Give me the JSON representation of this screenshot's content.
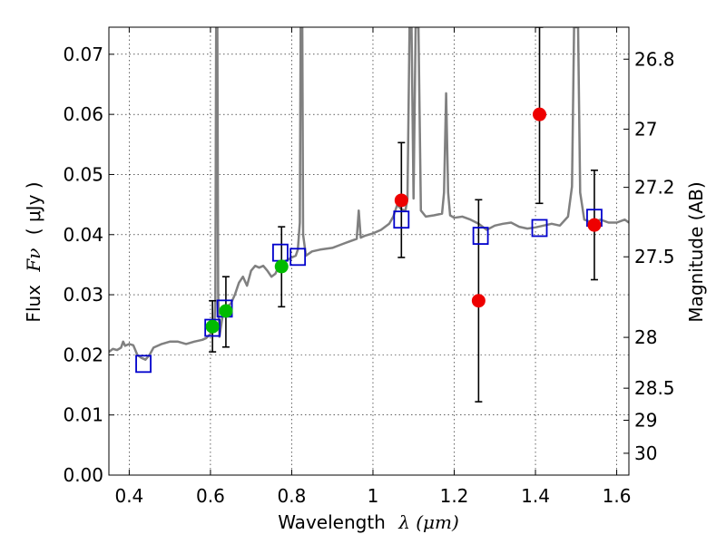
{
  "chart_data": {
    "type": "scatter",
    "xlabel": "Wavelength",
    "xlabel_symbol": "λ (μm)",
    "ylabel": "Flux",
    "ylabel_symbol": "Fν",
    "ylabel_unit": "( μJy )",
    "y2label": "Magnitude (AB)",
    "xlim": [
      0.35,
      1.63
    ],
    "ylim": [
      0.0,
      0.0745
    ],
    "grid": true,
    "x_ticks": [
      0.4,
      0.6,
      0.8,
      1.0,
      1.2,
      1.4,
      1.6
    ],
    "x_tick_labels": [
      "0.4",
      "0.6",
      "0.8",
      "1",
      "1.2",
      "1.4",
      "1.6"
    ],
    "y_ticks": [
      0.0,
      0.01,
      0.02,
      0.03,
      0.04,
      0.05,
      0.06,
      0.07
    ],
    "y_tick_labels": [
      "0.00",
      "0.01",
      "0.02",
      "0.03",
      "0.04",
      "0.05",
      "0.06",
      "0.07"
    ],
    "y2_ticks": [
      {
        "label": "26.8",
        "mag": 26.8
      },
      {
        "label": "27",
        "mag": 27.0
      },
      {
        "label": "27.2",
        "mag": 27.2
      },
      {
        "label": "27.5",
        "mag": 27.5
      },
      {
        "label": "28",
        "mag": 28.0
      },
      {
        "label": "28.5",
        "mag": 28.5
      },
      {
        "label": "29",
        "mag": 29.0
      },
      {
        "label": "30",
        "mag": 30.0
      }
    ],
    "colors": {
      "model": "#808080",
      "observed_green": "#00bb00",
      "observed_red": "#ee0000",
      "synthetic_box": "#0000cc",
      "errorbar": "#000000"
    },
    "series": [
      {
        "kind": "model_spectrum",
        "points": [
          [
            0.35,
            0.0205
          ],
          [
            0.36,
            0.021
          ],
          [
            0.37,
            0.0208
          ],
          [
            0.38,
            0.0212
          ],
          [
            0.385,
            0.0222
          ],
          [
            0.39,
            0.0215
          ],
          [
            0.4,
            0.0218
          ],
          [
            0.41,
            0.0216
          ],
          [
            0.42,
            0.02
          ],
          [
            0.43,
            0.0195
          ],
          [
            0.44,
            0.0192
          ],
          [
            0.45,
            0.02
          ],
          [
            0.46,
            0.0212
          ],
          [
            0.48,
            0.0218
          ],
          [
            0.5,
            0.0222
          ],
          [
            0.52,
            0.0222
          ],
          [
            0.54,
            0.0218
          ],
          [
            0.56,
            0.0222
          ],
          [
            0.58,
            0.0225
          ],
          [
            0.59,
            0.0228
          ],
          [
            0.6,
            0.0235
          ],
          [
            0.605,
            0.024
          ],
          [
            0.61,
            0.0255
          ],
          [
            0.612,
            0.029
          ],
          [
            0.614,
            0.0745
          ],
          [
            0.617,
            0.0745
          ],
          [
            0.619,
            0.03
          ],
          [
            0.622,
            0.023
          ],
          [
            0.63,
            0.0265
          ],
          [
            0.64,
            0.028
          ],
          [
            0.65,
            0.0285
          ],
          [
            0.66,
            0.03
          ],
          [
            0.67,
            0.032
          ],
          [
            0.68,
            0.033
          ],
          [
            0.69,
            0.0315
          ],
          [
            0.7,
            0.034
          ],
          [
            0.71,
            0.0348
          ],
          [
            0.72,
            0.0345
          ],
          [
            0.73,
            0.0348
          ],
          [
            0.74,
            0.034
          ],
          [
            0.75,
            0.033
          ],
          [
            0.76,
            0.0335
          ],
          [
            0.77,
            0.035
          ],
          [
            0.78,
            0.0355
          ],
          [
            0.79,
            0.0358
          ],
          [
            0.8,
            0.0362
          ],
          [
            0.81,
            0.0365
          ],
          [
            0.815,
            0.0375
          ],
          [
            0.82,
            0.042
          ],
          [
            0.822,
            0.0745
          ],
          [
            0.826,
            0.0745
          ],
          [
            0.828,
            0.04
          ],
          [
            0.835,
            0.0365
          ],
          [
            0.85,
            0.0372
          ],
          [
            0.87,
            0.0375
          ],
          [
            0.9,
            0.0378
          ],
          [
            0.92,
            0.0383
          ],
          [
            0.94,
            0.0388
          ],
          [
            0.96,
            0.0393
          ],
          [
            0.965,
            0.044
          ],
          [
            0.97,
            0.0395
          ],
          [
            0.98,
            0.0398
          ],
          [
            1.0,
            0.0402
          ],
          [
            1.02,
            0.0408
          ],
          [
            1.04,
            0.0418
          ],
          [
            1.05,
            0.043
          ],
          [
            1.06,
            0.045
          ],
          [
            1.07,
            0.0442
          ],
          [
            1.08,
            0.044
          ],
          [
            1.085,
            0.046
          ],
          [
            1.09,
            0.0745
          ],
          [
            1.095,
            0.0745
          ],
          [
            1.1,
            0.046
          ],
          [
            1.105,
            0.0745
          ],
          [
            1.112,
            0.0745
          ],
          [
            1.118,
            0.044
          ],
          [
            1.13,
            0.043
          ],
          [
            1.15,
            0.0432
          ],
          [
            1.17,
            0.0435
          ],
          [
            1.175,
            0.047
          ],
          [
            1.18,
            0.0635
          ],
          [
            1.185,
            0.047
          ],
          [
            1.19,
            0.0432
          ],
          [
            1.2,
            0.0428
          ],
          [
            1.22,
            0.043
          ],
          [
            1.24,
            0.0425
          ],
          [
            1.26,
            0.0418
          ],
          [
            1.28,
            0.0408
          ],
          [
            1.3,
            0.0415
          ],
          [
            1.32,
            0.0418
          ],
          [
            1.34,
            0.042
          ],
          [
            1.36,
            0.0413
          ],
          [
            1.38,
            0.041
          ],
          [
            1.4,
            0.0412
          ],
          [
            1.42,
            0.0415
          ],
          [
            1.44,
            0.0418
          ],
          [
            1.46,
            0.0415
          ],
          [
            1.48,
            0.043
          ],
          [
            1.49,
            0.048
          ],
          [
            1.495,
            0.0745
          ],
          [
            1.505,
            0.0745
          ],
          [
            1.51,
            0.047
          ],
          [
            1.52,
            0.0425
          ],
          [
            1.54,
            0.042
          ],
          [
            1.56,
            0.0425
          ],
          [
            1.58,
            0.042
          ],
          [
            1.6,
            0.042
          ],
          [
            1.62,
            0.0425
          ],
          [
            1.63,
            0.042
          ]
        ]
      },
      {
        "kind": "observed_green",
        "points": [
          {
            "x": 0.605,
            "y": 0.0247,
            "yerr_low": 0.0205,
            "yerr_high": 0.029
          },
          {
            "x": 0.638,
            "y": 0.0273,
            "yerr_low": 0.0213,
            "yerr_high": 0.033
          },
          {
            "x": 0.775,
            "y": 0.0347,
            "yerr_low": 0.028,
            "yerr_high": 0.0413
          }
        ]
      },
      {
        "kind": "observed_red",
        "points": [
          {
            "x": 1.07,
            "y": 0.0457,
            "yerr_low": 0.0362,
            "yerr_high": 0.0553
          },
          {
            "x": 1.26,
            "y": 0.029,
            "yerr_low": 0.0122,
            "yerr_high": 0.0458
          },
          {
            "x": 1.41,
            "y": 0.06,
            "yerr_low": 0.0452,
            "yerr_high": 0.0745
          },
          {
            "x": 1.545,
            "y": 0.0416,
            "yerr_low": 0.0325,
            "yerr_high": 0.0507
          }
        ]
      },
      {
        "kind": "synthetic_boxes",
        "points": [
          {
            "x": 0.435,
            "y": 0.0185
          },
          {
            "x": 0.605,
            "y": 0.0245
          },
          {
            "x": 0.635,
            "y": 0.0277
          },
          {
            "x": 0.772,
            "y": 0.037
          },
          {
            "x": 0.815,
            "y": 0.0363
          },
          {
            "x": 1.07,
            "y": 0.0425
          },
          {
            "x": 1.265,
            "y": 0.0398
          },
          {
            "x": 1.41,
            "y": 0.0411
          },
          {
            "x": 1.545,
            "y": 0.0428
          }
        ]
      }
    ]
  }
}
